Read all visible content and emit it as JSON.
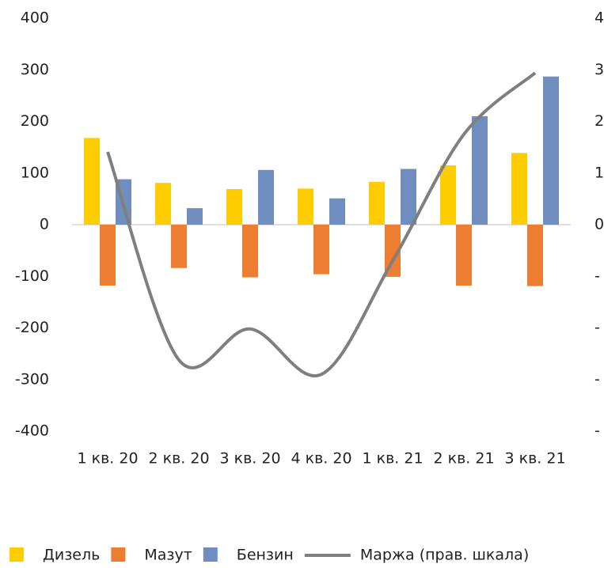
{
  "chart_data": {
    "type": "bar-line",
    "categories": [
      "1 кв. 20",
      "2 кв. 20",
      "3 кв. 20",
      "4 кв. 20",
      "1 кв. 21",
      "2 кв. 21",
      "3 кв. 21"
    ],
    "series": [
      {
        "name": "Дизель",
        "color": "#ffcc00",
        "values": [
          168,
          81,
          69,
          70,
          83,
          115,
          139
        ]
      },
      {
        "name": "Мазут",
        "color": "#ed7d31",
        "values": [
          -118,
          -84,
          -102,
          -96,
          -101,
          -118,
          -119
        ]
      },
      {
        "name": "Бензин",
        "color": "#6f8dbf",
        "values": [
          88,
          32,
          106,
          51,
          108,
          210,
          287
        ]
      },
      {
        "name": "Маржа (прав. шкала)",
        "color": "#7f7f7f",
        "axis": "y2",
        "type": "line",
        "values": [
          141,
          -262,
          -202,
          -290,
          -70,
          175,
          294
        ]
      }
    ],
    "ylim": [
      -400,
      400
    ],
    "yticks": [
      -400,
      -300,
      -200,
      -100,
      0,
      100,
      200,
      300,
      400
    ],
    "y2lim": [
      -400,
      400
    ],
    "y2ticks": [
      {
        "value": -400,
        "label": "-"
      },
      {
        "value": -300,
        "label": "-"
      },
      {
        "value": -200,
        "label": "-"
      },
      {
        "value": -100,
        "label": "-"
      },
      0,
      {
        "value": 100,
        "label": "1"
      },
      {
        "value": 200,
        "label": "2"
      },
      {
        "value": 300,
        "label": "3"
      },
      {
        "value": 400,
        "label": "4"
      }
    ],
    "legend": "bottom"
  }
}
